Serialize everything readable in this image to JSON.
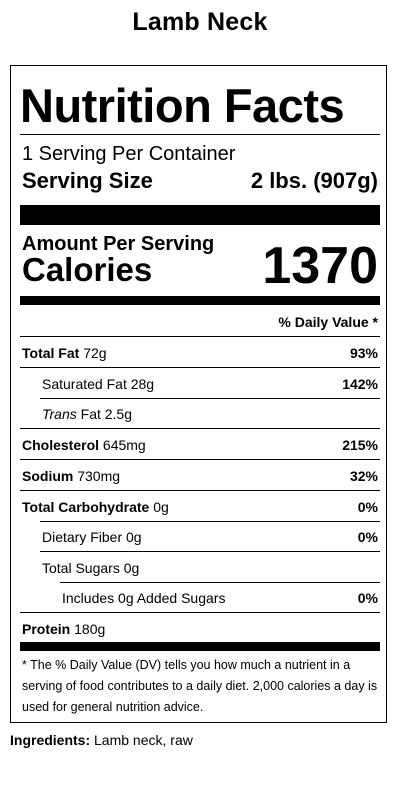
{
  "product_name": "Lamb Neck",
  "label": {
    "heading": "Nutrition Facts",
    "servings_per_container": "1 Serving Per Container",
    "serving_size_label": "Serving Size",
    "serving_size_value": "2 lbs. (907g)",
    "amount_per_serving": "Amount Per Serving",
    "calories_label": "Calories",
    "calories_value": "1370",
    "daily_value_header": "% Daily Value *",
    "rows": {
      "total_fat": {
        "label": "Total Fat",
        "amount": "72g",
        "dv": "93%"
      },
      "saturated_fat": {
        "label": "Saturated Fat 28g",
        "dv": "142%"
      },
      "trans_fat": {
        "italic": "Trans",
        "label": "Fat 2.5g"
      },
      "cholesterol": {
        "label": "Cholesterol",
        "amount": "645mg",
        "dv": "215%"
      },
      "sodium": {
        "label": "Sodium",
        "amount": "730mg",
        "dv": "32%"
      },
      "total_carbohydrate": {
        "label": "Total Carbohydrate",
        "amount": "0g",
        "dv": "0%"
      },
      "dietary_fiber": {
        "label": "Dietary Fiber 0g",
        "dv": "0%"
      },
      "total_sugars": {
        "label": "Total Sugars 0g"
      },
      "added_sugars": {
        "label": "Includes 0g Added Sugars",
        "dv": "0%"
      },
      "protein": {
        "label": "Protein",
        "amount": "180g"
      }
    },
    "footnote": "* The % Daily Value (DV) tells you how much a nutrient in a serving of food contributes to a daily diet. 2,000 calories a day is used for general nutrition advice."
  },
  "ingredients": {
    "label": "Ingredients:",
    "value": "Lamb neck, raw"
  }
}
